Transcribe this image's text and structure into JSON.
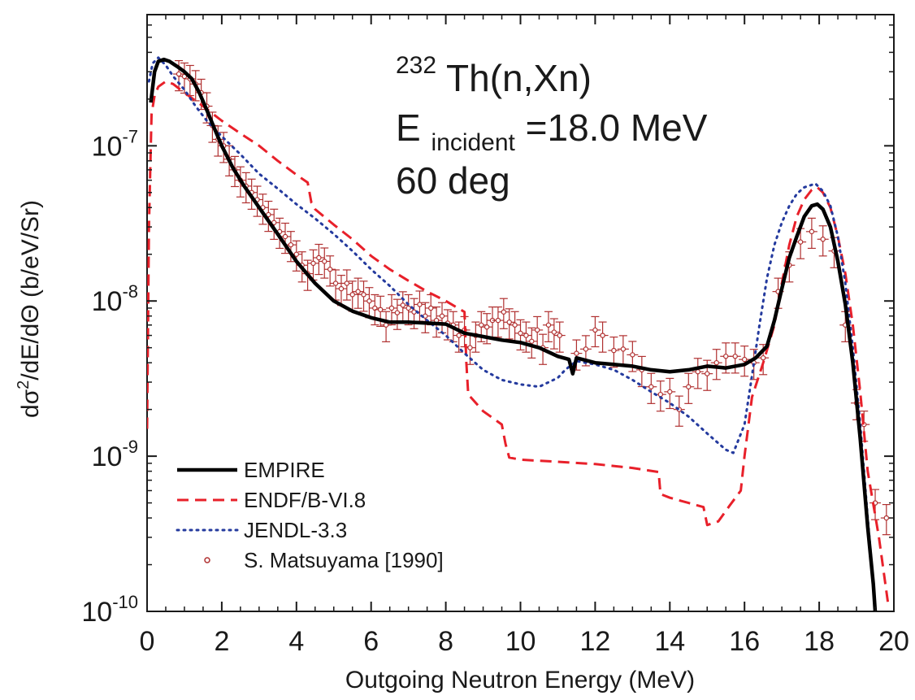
{
  "chart_data": {
    "type": "line",
    "title_lines": {
      "line1_sup": "232",
      "line1_main": "Th(n,Xn)",
      "line2_main": "E",
      "line2_sub": "incident",
      "line2_rest": "=18.0 MeV",
      "line3": "60 deg"
    },
    "xlabel": "Outgoing Neutron Energy (MeV)",
    "ylabel": {
      "p1": "d",
      "sigma": "σ",
      "sup": "2",
      "p2": "/dE/d",
      "theta": "Θ",
      "p3": " (b/eV/Sr)"
    },
    "x_scale": "linear",
    "y_scale": "log",
    "xlim": [
      0,
      20
    ],
    "ylim": [
      1e-10,
      7e-07
    ],
    "x_ticks": [
      0,
      2,
      4,
      6,
      8,
      10,
      12,
      14,
      16,
      18,
      20
    ],
    "x_tick_labels": [
      "0",
      "2",
      "4",
      "6",
      "8",
      "10",
      "12",
      "14",
      "16",
      "18",
      "20"
    ],
    "y_ticks": [
      {
        "value": 1e-10,
        "base": "10",
        "exp": "-10"
      },
      {
        "value": 1e-09,
        "base": "10",
        "exp": "-9"
      },
      {
        "value": 1e-08,
        "base": "10",
        "exp": "-8"
      },
      {
        "value": 1e-07,
        "base": "10",
        "exp": "-7"
      }
    ],
    "legend_position": "bottom-left",
    "series": [
      {
        "name": "EMPIRE",
        "style": "solid",
        "color": "#000000",
        "x": [
          0.1,
          0.2,
          0.3,
          0.45,
          0.6,
          0.8,
          1.0,
          1.2,
          1.4,
          1.6,
          1.8,
          2.0,
          2.3,
          2.6,
          3.0,
          3.5,
          4.0,
          4.5,
          5.0,
          5.5,
          6.0,
          6.5,
          7.0,
          7.5,
          8.0,
          8.5,
          9.0,
          9.5,
          10.0,
          10.5,
          11.0,
          11.3,
          11.4,
          11.5,
          12.0,
          12.5,
          13.0,
          13.5,
          14.0,
          14.5,
          15.0,
          15.5,
          16.0,
          16.3,
          16.6,
          16.8,
          17.0,
          17.2,
          17.4,
          17.6,
          17.8,
          17.95,
          18.1,
          18.3,
          18.5,
          18.7,
          18.9,
          19.1,
          19.3,
          19.45,
          19.5
        ],
        "y": [
          1.9e-07,
          3e-07,
          3.5e-07,
          3.6e-07,
          3.5e-07,
          3.25e-07,
          3e-07,
          2.7e-07,
          2.2e-07,
          1.7e-07,
          1.3e-07,
          1e-07,
          7.2e-08,
          5.5e-08,
          4e-08,
          2.7e-08,
          1.8e-08,
          1.3e-08,
          1e-08,
          8.6e-09,
          7.8e-09,
          7.3e-09,
          7.3e-09,
          7.2e-09,
          7.1e-09,
          6.2e-09,
          5.9e-09,
          5.6e-09,
          5.4e-09,
          5e-09,
          4.4e-09,
          4.2e-09,
          3.4e-09,
          4.3e-09,
          4e-09,
          3.9e-09,
          3.8e-09,
          3.6e-09,
          3.5e-09,
          3.6e-09,
          3.8e-09,
          3.7e-09,
          3.9e-09,
          4.3e-09,
          5.1e-09,
          7.5e-09,
          1.2e-08,
          1.9e-08,
          2.6e-08,
          3.5e-08,
          4.1e-08,
          4.2e-08,
          3.9e-08,
          3e-08,
          1.8e-08,
          9.5e-09,
          4e-09,
          1.3e-09,
          3.5e-10,
          1.5e-10,
          1e-10
        ]
      },
      {
        "name": "ENDF/B-VI.8",
        "style": "dashed",
        "color": "#e8202a",
        "x": [
          0.0,
          0.05,
          0.12,
          0.2,
          0.3,
          0.5,
          0.7,
          1.0,
          1.5,
          2.0,
          2.5,
          3.0,
          3.5,
          4.0,
          4.3,
          4.4,
          4.5,
          5.0,
          5.5,
          6.0,
          6.5,
          7.0,
          7.5,
          8.0,
          8.5,
          8.55,
          8.6,
          9.0,
          9.5,
          9.6,
          9.7,
          10.0,
          11.0,
          12.0,
          13.0,
          13.7,
          13.75,
          14.0,
          14.5,
          14.9,
          15.0,
          15.3,
          15.6,
          15.9,
          16.0,
          16.2,
          16.5,
          16.8,
          17.0,
          17.2,
          17.4,
          17.6,
          17.8,
          17.95,
          18.1,
          18.3,
          18.5,
          18.7,
          18.9,
          19.1,
          19.3,
          19.6,
          19.85
        ],
        "y": [
          1.5e-09,
          3e-08,
          1.6e-07,
          2.1e-07,
          2.4e-07,
          2.6e-07,
          2.5e-07,
          2.2e-07,
          1.8e-07,
          1.45e-07,
          1.2e-07,
          1e-07,
          8e-08,
          6.5e-08,
          5.8e-08,
          4.3e-08,
          3.9e-08,
          3.1e-08,
          2.5e-08,
          1.95e-08,
          1.6e-08,
          1.35e-08,
          1.15e-08,
          1e-08,
          8.5e-09,
          4e-09,
          2.5e-09,
          1.95e-09,
          1.6e-09,
          1.2e-09,
          9.8e-10,
          9.5e-10,
          9.2e-10,
          8.9e-10,
          8.4e-10,
          7.9e-10,
          5.7e-10,
          5.4e-10,
          5e-10,
          4.7e-10,
          3.6e-10,
          3.8e-10,
          4.8e-10,
          6e-10,
          1e-09,
          2.4e-09,
          4e-09,
          7e-09,
          1.3e-08,
          2.3e-08,
          3.5e-08,
          4.5e-08,
          5.2e-08,
          5.4e-08,
          5e-08,
          4e-08,
          2.6e-08,
          1.5e-08,
          7e-09,
          2.6e-09,
          8e-10,
          3e-10,
          1.1e-10
        ]
      },
      {
        "name": "JENDL-3.3",
        "style": "dotted",
        "color": "#243a9e",
        "x": [
          0.05,
          0.15,
          0.3,
          0.5,
          0.7,
          1.0,
          1.3,
          1.6,
          2.0,
          2.5,
          3.0,
          3.5,
          4.0,
          4.5,
          5.0,
          5.5,
          6.0,
          6.5,
          7.0,
          7.5,
          8.0,
          8.5,
          9.0,
          9.5,
          10.0,
          10.5,
          11.0,
          11.2,
          11.5,
          12.0,
          12.5,
          13.0,
          13.5,
          14.0,
          14.5,
          15.0,
          15.5,
          15.7,
          16.0,
          16.2,
          16.4,
          16.6,
          16.8,
          17.0,
          17.2,
          17.4,
          17.6,
          17.8,
          17.9,
          18.1,
          18.3,
          18.5,
          18.7,
          18.9,
          19.1,
          19.3,
          19.5
        ],
        "y": [
          2.6e-07,
          3.4e-07,
          3.7e-07,
          3.3e-07,
          2.8e-07,
          2.3e-07,
          1.8e-07,
          1.45e-07,
          1.15e-07,
          8.8e-08,
          6.6e-08,
          5.3e-08,
          4.2e-08,
          3.4e-08,
          2.7e-08,
          2.1e-08,
          1.6e-08,
          1.25e-08,
          9.5e-09,
          7.5e-09,
          6e-09,
          4.6e-09,
          3.6e-09,
          3.1e-09,
          2.9e-09,
          2.8e-09,
          3.2e-09,
          3.6e-09,
          4.1e-09,
          3.9e-09,
          3.6e-09,
          3.1e-09,
          2.6e-09,
          2.2e-09,
          1.8e-09,
          1.4e-09,
          1.1e-09,
          1.05e-09,
          1.6e-09,
          3.3e-09,
          7e-09,
          1.4e-08,
          2.3e-08,
          3.2e-08,
          4.1e-08,
          4.9e-08,
          5.4e-08,
          5.6e-08,
          5.7e-08,
          5.1e-08,
          4.1e-08,
          2.6e-08,
          1.3e-08,
          5e-09,
          1.6e-09,
          4e-10,
          1.1e-10
        ]
      },
      {
        "name": "S. Matsuyama [1990]",
        "style": "markers",
        "color": "#b03030",
        "x": [
          0.85,
          1.0,
          1.15,
          1.3,
          1.45,
          1.6,
          1.75,
          1.9,
          2.05,
          2.2,
          2.35,
          2.5,
          2.65,
          2.8,
          2.95,
          3.1,
          3.25,
          3.4,
          3.55,
          3.7,
          3.85,
          4.0,
          4.15,
          4.3,
          4.45,
          4.6,
          4.75,
          4.9,
          5.05,
          5.2,
          5.35,
          5.5,
          5.65,
          5.8,
          5.95,
          6.1,
          6.25,
          6.4,
          6.55,
          6.7,
          6.85,
          7.0,
          7.15,
          7.3,
          7.45,
          7.6,
          7.75,
          7.9,
          8.05,
          8.2,
          8.35,
          8.5,
          8.65,
          8.8,
          8.95,
          9.1,
          9.25,
          9.4,
          9.55,
          9.7,
          9.85,
          10.0,
          10.15,
          10.3,
          10.45,
          10.6,
          10.75,
          10.9,
          11.05,
          11.5,
          11.75,
          12.0,
          12.2,
          12.5,
          12.75,
          13.0,
          13.25,
          13.5,
          13.75,
          14.0,
          14.25,
          14.5,
          14.75,
          15.0,
          15.25,
          15.5,
          15.75,
          16.0,
          16.25,
          16.5,
          16.9,
          17.2,
          17.5,
          17.8,
          18.1,
          18.4,
          18.7,
          19.0,
          19.2,
          19.5,
          19.8
        ],
        "y": [
          2.9e-07,
          2.8e-07,
          2.7e-07,
          2.5e-07,
          2.2e-07,
          1.8e-07,
          1.35e-07,
          1.1e-07,
          1e-07,
          8.2e-08,
          7e-08,
          6e-08,
          5.5e-08,
          5e-08,
          4.5e-08,
          4e-08,
          3.6e-08,
          3.2e-08,
          2.8e-08,
          2.6e-08,
          2.3e-08,
          2e-08,
          1.7e-08,
          1.5e-08,
          1.75e-08,
          1.9e-08,
          1.8e-08,
          1.6e-08,
          1.3e-08,
          1.2e-08,
          1.3e-08,
          1.1e-08,
          1.15e-08,
          1.1e-08,
          1e-08,
          9e-09,
          8.8e-09,
          7e-09,
          9e-09,
          8.4e-09,
          9.4e-09,
          9e-09,
          8.5e-09,
          9.5e-09,
          8e-09,
          9e-09,
          7.5e-09,
          8e-09,
          7.2e-09,
          7e-09,
          6e-09,
          6.5e-09,
          5e-09,
          6e-09,
          7e-09,
          6.8e-09,
          7.5e-09,
          7.5e-09,
          8.5e-09,
          7.3e-09,
          7e-09,
          6.2e-09,
          6e-09,
          5.5e-09,
          6.5e-09,
          5e-09,
          7e-09,
          6.3e-09,
          6e-09,
          4.6e-09,
          4.9e-09,
          6.5e-09,
          6e-09,
          4.8e-09,
          4.9e-09,
          4.5e-09,
          3.6e-09,
          2.8e-09,
          2.5e-09,
          2.6e-09,
          2e-09,
          2.8e-09,
          3.5e-09,
          3.4e-09,
          4e-09,
          4.4e-09,
          4.4e-09,
          4.2e-09,
          4e-09,
          4.3e-09,
          1.15e-08,
          1.7e-08,
          2.4e-08,
          2.8e-08,
          2.5e-08,
          2.1e-08,
          7e-09,
          2.2e-09,
          1.6e-09,
          5e-10,
          4e-10
        ],
        "err_rel": 0.22
      }
    ]
  }
}
